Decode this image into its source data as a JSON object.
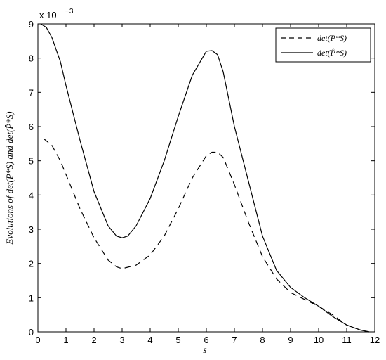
{
  "chart_data": {
    "type": "line",
    "title": "",
    "xlabel": "s",
    "ylabel": "Evolutions of det(P*S) and det(P̂*S)",
    "y_scale_label": "x 10",
    "y_scale_exponent": "−3",
    "xlim": [
      0,
      12
    ],
    "ylim": [
      0,
      9
    ],
    "x_ticks": [
      0,
      1,
      2,
      3,
      4,
      5,
      6,
      7,
      8,
      9,
      10,
      11,
      12
    ],
    "y_ticks": [
      0,
      1,
      2,
      3,
      4,
      5,
      6,
      7,
      8,
      9
    ],
    "grid": false,
    "legend_position": "top-right",
    "series": [
      {
        "name": "det(P*S)",
        "style": "dashed",
        "x": [
          0.2,
          0.5,
          0.8,
          1.0,
          1.5,
          2.0,
          2.5,
          2.8,
          3.0,
          3.5,
          4.0,
          4.5,
          5.0,
          5.5,
          6.0,
          6.2,
          6.4,
          6.6,
          7.0,
          7.5,
          8.0,
          8.5,
          9.0,
          9.5,
          10.0,
          10.5,
          11.0,
          11.5,
          11.8
        ],
        "y": [
          5.65,
          5.45,
          5.0,
          4.6,
          3.6,
          2.75,
          2.1,
          1.9,
          1.85,
          1.95,
          2.25,
          2.8,
          3.6,
          4.5,
          5.15,
          5.25,
          5.25,
          5.1,
          4.3,
          3.2,
          2.2,
          1.55,
          1.15,
          0.95,
          0.75,
          0.5,
          0.2,
          0.05,
          0.0
        ]
      },
      {
        "name": "det(P̂*S)",
        "style": "solid",
        "x": [
          0.1,
          0.3,
          0.5,
          0.8,
          1.0,
          1.5,
          2.0,
          2.5,
          2.8,
          3.0,
          3.2,
          3.5,
          4.0,
          4.5,
          5.0,
          5.5,
          6.0,
          6.2,
          6.4,
          6.6,
          7.0,
          7.5,
          8.0,
          8.5,
          9.0,
          9.5,
          10.0,
          10.5,
          11.0,
          11.5,
          11.8
        ],
        "y": [
          9.0,
          8.9,
          8.6,
          7.9,
          7.2,
          5.6,
          4.1,
          3.1,
          2.8,
          2.75,
          2.8,
          3.1,
          3.9,
          5.0,
          6.3,
          7.5,
          8.2,
          8.22,
          8.1,
          7.6,
          6.0,
          4.4,
          2.8,
          1.8,
          1.3,
          1.0,
          0.75,
          0.45,
          0.2,
          0.05,
          0.0
        ]
      }
    ]
  }
}
